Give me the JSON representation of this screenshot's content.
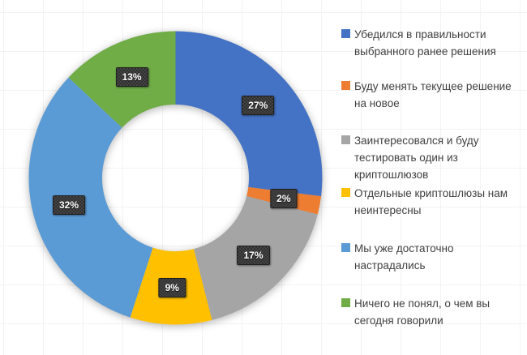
{
  "chart_data": {
    "type": "pie",
    "subtype": "donut",
    "title": "",
    "categories": [
      "Убедился в правильности выбранного ранее решения",
      "Буду менять текущее решение на новое",
      "Заинтересовался и буду тестировать один из криптошлюзов",
      "Отдельные криптошлюзы нам неинтересны",
      "Мы уже достаточно настрадались",
      "Ничего не понял, о чем вы сегодня говорили"
    ],
    "values": [
      27,
      2,
      17,
      9,
      32,
      13
    ],
    "unit": "%",
    "data_labels": [
      "27%",
      "2%",
      "17%",
      "9%",
      "32%",
      "13%"
    ],
    "colors": [
      "#4472C4",
      "#ED7D31",
      "#A5A5A5",
      "#FFC000",
      "#5B9BD5",
      "#70AD47"
    ],
    "start_angle_deg": 0,
    "direction": "clockwise",
    "inner_radius_ratio": 0.5,
    "legend_position": "right",
    "grid": "faint-background-grid",
    "label_box_color": "#3F3F3F",
    "label_text_color": "#FFFFFF",
    "legend_text_color": "#404040"
  }
}
